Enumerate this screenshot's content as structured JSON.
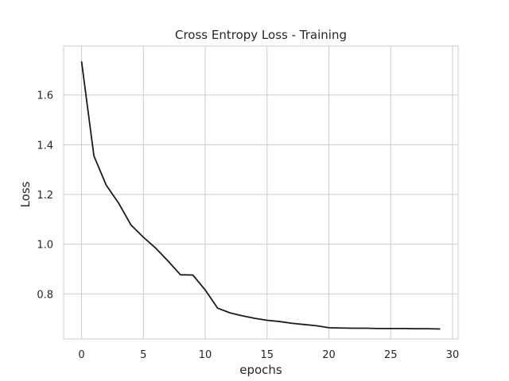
{
  "chart_data": {
    "type": "line",
    "title": "Cross Entropy Loss - Training",
    "xlabel": "epochs",
    "ylabel": "Loss",
    "xlim": [
      -1.45,
      30.45
    ],
    "ylim": [
      0.619,
      1.797
    ],
    "xticks": [
      0,
      5,
      10,
      15,
      20,
      25,
      30
    ],
    "yticks": [
      0.8,
      1.0,
      1.2,
      1.4,
      1.6
    ],
    "ytick_labels": [
      "0.8",
      "1.0",
      "1.2",
      "1.4",
      "1.6"
    ],
    "grid": true,
    "series": [
      {
        "color": "#1a1a1a",
        "x": [
          0,
          1,
          2,
          3,
          4,
          5,
          6,
          7,
          8,
          9,
          10,
          11,
          12,
          13,
          14,
          15,
          16,
          17,
          18,
          19,
          20,
          21,
          22,
          23,
          24,
          25,
          26,
          27,
          28,
          29
        ],
        "values": [
          1.735,
          1.355,
          1.237,
          1.165,
          1.077,
          1.028,
          0.984,
          0.932,
          0.877,
          0.876,
          0.816,
          0.743,
          0.724,
          0.712,
          0.702,
          0.694,
          0.689,
          0.682,
          0.677,
          0.672,
          0.664,
          0.663,
          0.662,
          0.662,
          0.661,
          0.661,
          0.661,
          0.66,
          0.66,
          0.659
        ]
      }
    ]
  }
}
